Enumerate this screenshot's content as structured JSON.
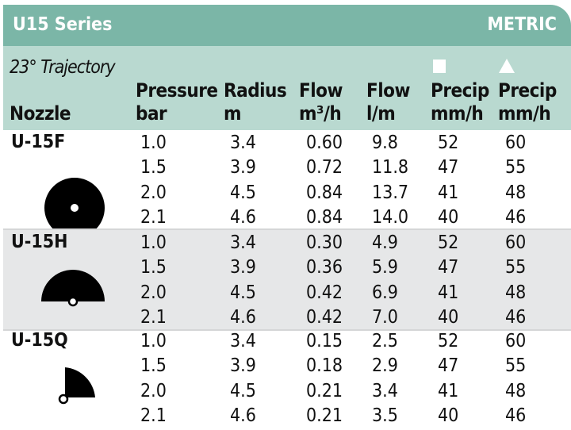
{
  "title": "U15 Series",
  "units": "METRIC",
  "trajectory": "23° Trajectory",
  "headers": {
    "nozzle": "Nozzle",
    "pressure": [
      "Pressure",
      "bar"
    ],
    "radius": [
      "Radius",
      "m"
    ],
    "flow_m3": [
      "Flow",
      "m³/h"
    ],
    "flow_lm": [
      "Flow",
      "l/m"
    ],
    "precip_square": [
      "Precip",
      "mm/h"
    ],
    "precip_triangle": [
      "Precip",
      "mm/h"
    ]
  },
  "legend_icons": [
    "square-spacing-icon",
    "triangle-spacing-icon"
  ],
  "colors": {
    "title_bar": "#7bb6a7",
    "header": "#b9d9d0",
    "stripe": "#e6e7e8"
  },
  "nozzles": [
    {
      "name": "U-15F",
      "icon": "full-circle-icon",
      "rows": [
        [
          "1.0",
          "3.4",
          "0.60",
          "9.8",
          "52",
          "60"
        ],
        [
          "1.5",
          "3.9",
          "0.72",
          "11.8",
          "47",
          "55"
        ],
        [
          "2.0",
          "4.5",
          "0.84",
          "13.7",
          "41",
          "48"
        ],
        [
          "2.1",
          "4.6",
          "0.84",
          "14.0",
          "40",
          "46"
        ]
      ]
    },
    {
      "name": "U-15H",
      "icon": "half-circle-icon",
      "rows": [
        [
          "1.0",
          "3.4",
          "0.30",
          "4.9",
          "52",
          "60"
        ],
        [
          "1.5",
          "3.9",
          "0.36",
          "5.9",
          "47",
          "55"
        ],
        [
          "2.0",
          "4.5",
          "0.42",
          "6.9",
          "41",
          "48"
        ],
        [
          "2.1",
          "4.6",
          "0.42",
          "7.0",
          "40",
          "46"
        ]
      ]
    },
    {
      "name": "U-15Q",
      "icon": "quarter-circle-icon",
      "rows": [
        [
          "1.0",
          "3.4",
          "0.15",
          "2.5",
          "52",
          "60"
        ],
        [
          "1.5",
          "3.9",
          "0.18",
          "2.9",
          "47",
          "55"
        ],
        [
          "2.0",
          "4.5",
          "0.21",
          "3.4",
          "41",
          "48"
        ],
        [
          "2.1",
          "4.6",
          "0.21",
          "3.5",
          "40",
          "46"
        ]
      ]
    }
  ]
}
